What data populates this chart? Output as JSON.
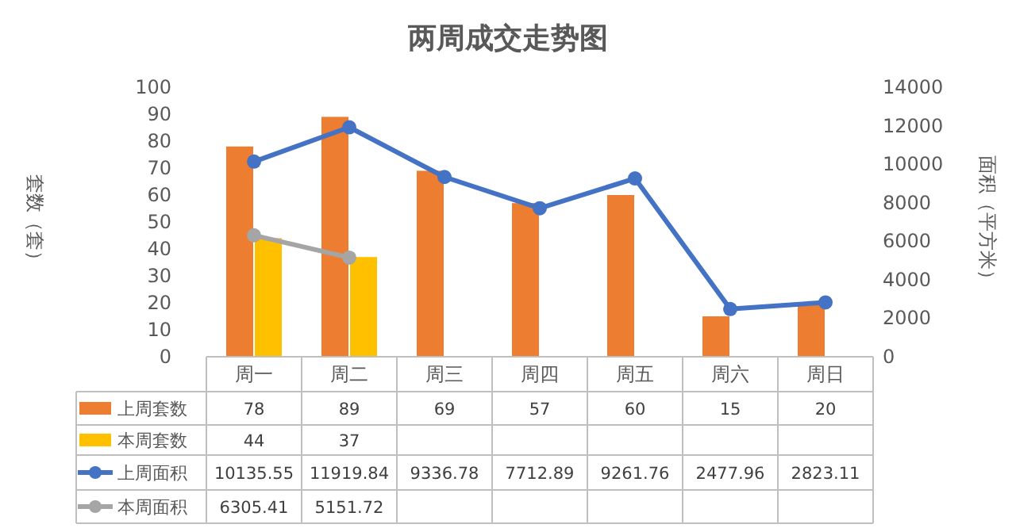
{
  "chart_data": {
    "type": "bar",
    "title": "两周成交走势图",
    "ylabel": "套数（套）",
    "y2label": "面积（平方米）",
    "categories": [
      "周一",
      "周二",
      "周三",
      "周四",
      "周五",
      "周六",
      "周日"
    ],
    "ylim": [
      0,
      100
    ],
    "yticks": [
      0,
      10,
      20,
      30,
      40,
      50,
      60,
      70,
      80,
      90,
      100
    ],
    "y2lim": [
      0,
      14000
    ],
    "y2ticks": [
      0,
      2000,
      4000,
      6000,
      8000,
      10000,
      12000,
      14000
    ],
    "series": [
      {
        "name": "上周套数",
        "color": "#ed7d31",
        "values": [
          78,
          89,
          69,
          57,
          60,
          15,
          20
        ]
      },
      {
        "name": "本周套数",
        "color": "#ffc000",
        "values": [
          44,
          37,
          null,
          null,
          null,
          null,
          null
        ]
      },
      {
        "name": "上周面积",
        "type": "line",
        "axis": "y2",
        "color": "#4472c4",
        "values": [
          10135.55,
          11919.84,
          9336.78,
          7712.89,
          9261.76,
          2477.96,
          2823.11
        ]
      },
      {
        "name": "本周面积",
        "type": "line",
        "axis": "y2",
        "color": "#a5a5a5",
        "values": [
          6305.41,
          5151.72,
          null,
          null,
          null,
          null,
          null
        ]
      }
    ],
    "marker": "circle",
    "data_labels": true,
    "legend": "bottom",
    "grid": false
  }
}
